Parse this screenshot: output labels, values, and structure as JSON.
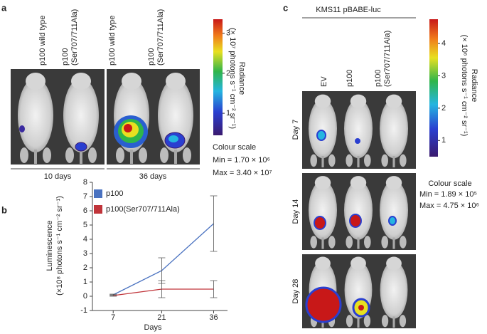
{
  "panel_a": {
    "label": "a",
    "columns": [
      [
        "p100 wild type"
      ],
      [
        "p100",
        "(Ser707/711Ala)"
      ],
      [
        "p100 wild type"
      ],
      [
        "p100",
        "(Ser707/711Ala)"
      ]
    ],
    "groups": [
      "10 days",
      "36 days"
    ],
    "colorbar": {
      "title": [
        "Radiance",
        "(× 10⁷ photons s⁻¹ cm⁻² sr⁻¹)"
      ],
      "lim": [
        0.45,
        3.35
      ],
      "ticks": [
        1,
        2,
        3
      ]
    },
    "colour_scale": [
      "Colour scale",
      "Min = 1.70 × 10⁶",
      "Max = 3.40 × 10⁷"
    ]
  },
  "chart_data": {
    "type": "line",
    "panel_label": "b",
    "xlabel": "Days",
    "ylabel": [
      "Luminescence",
      "(×10⁸ photons s⁻¹ cm⁻² sr⁻¹)"
    ],
    "x": [
      7,
      21,
      36
    ],
    "xlim": [
      1,
      40
    ],
    "xticks": [
      7,
      21,
      36
    ],
    "ylim": [
      -1,
      8
    ],
    "yticks": [
      -1,
      0,
      1,
      2,
      3,
      4,
      5,
      6,
      7,
      8
    ],
    "series": [
      {
        "name": "p100",
        "color": "#4a72c0",
        "values": [
          0.1,
          1.8,
          5.1
        ],
        "errors": [
          0.05,
          0.9,
          1.95
        ]
      },
      {
        "name": "p100(Ser707/711Ala)",
        "color": "#c0343a",
        "values": [
          0.05,
          0.5,
          0.5
        ],
        "errors": [
          0.05,
          0.6,
          0.6
        ]
      }
    ]
  },
  "panel_c": {
    "label": "c",
    "header": "KMS11 pBABE-luc",
    "columns": [
      [
        "EV"
      ],
      [
        "p100"
      ],
      [
        "p100",
        "(Ser707/711Ala)"
      ]
    ],
    "rows": [
      "Day 7",
      "Day 14",
      "Day 28"
    ],
    "colorbar": {
      "title": [
        "Radiance",
        "(× 10⁶ photons s⁻¹ cm⁻² sr⁻¹)"
      ],
      "lim": [
        0.5,
        4.75
      ],
      "ticks": [
        1,
        2,
        3,
        4
      ]
    },
    "colour_scale": [
      "Colour scale",
      "Min = 1.89 × 10⁵",
      "Max = 4.75 × 10⁶"
    ]
  }
}
